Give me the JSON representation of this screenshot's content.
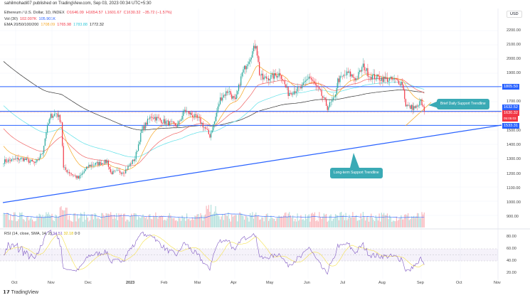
{
  "header": {
    "published": "sahilmohadi07 published on TradingView.com, Sep 03, 2023 00:34 UTC+5:30"
  },
  "legend": {
    "symbol": "Ethereum / U.S. Dollar, 1D, INDEX",
    "open": "O1646.09",
    "high": "H1654.57",
    "low": "L1601.67",
    "close": "C1630.32",
    "change": "−35.72 (−1.57%)",
    "vol_label": "Vol (30)",
    "vol_value": "102.007K",
    "vol_ma": "105.901K",
    "ema_label": "EMA 20/50/100/200",
    "ema20": "1708.09",
    "ema50": "1765.98",
    "ema100": "1783.88",
    "ema200": "1772.32"
  },
  "axis": {
    "currency": "USD",
    "price_ticks": [
      "2200.00",
      "2100.00",
      "2000.00",
      "1900.00",
      "1700.00",
      "1500.00",
      "1400.00",
      "1300.00",
      "1200.00",
      "1100.00",
      "1000.00",
      "900.00"
    ],
    "rsi_ticks": [
      "80.00",
      "60.00",
      "40.00",
      "20.00"
    ],
    "time_ticks": [
      "Oct",
      "Nov",
      "Dec",
      "2023",
      "Feb",
      "Mar",
      "Apr",
      "May",
      "Jun",
      "Jul",
      "Aug",
      "Sep",
      "Oct",
      "Nov"
    ]
  },
  "price_tags": {
    "resistance": "1805.50",
    "support_high": "1632.52",
    "last": "1630.32",
    "countdown": "05:05:03",
    "support_low": "1533.31"
  },
  "annotations": {
    "brief": "Brief Daily Support Trendline",
    "long": "Long-term Support Trendline"
  },
  "rsi": {
    "label": "RSI (14, close, SMA, 14, 2)",
    "value": "34.51",
    "sma": "32.18",
    "a": "0",
    "b": "0"
  },
  "footer": {
    "brand": "TradingView"
  },
  "colors": {
    "up": "#26a69a",
    "down": "#f23645",
    "level": "#2962ff",
    "ema20": "#f5a623",
    "ema50": "#f06464",
    "ema100": "#5ee0e8",
    "ema200": "#333333",
    "rsi": "#7e57c2",
    "rsi_ma": "#f5e14a"
  },
  "chart_data": {
    "type": "candlestick",
    "title": "Ethereum / U.S. Dollar, 1D",
    "ylim": [
      850,
      2300
    ],
    "levels": [
      1805.5,
      1632.52,
      1533.31
    ],
    "price_keypoints": [
      [
        0,
        1280
      ],
      [
        16,
        1300
      ],
      [
        28,
        1265
      ],
      [
        34,
        1350
      ],
      [
        37,
        1490
      ],
      [
        41,
        1600
      ],
      [
        46,
        1620
      ],
      [
        50,
        1560
      ],
      [
        52,
        1230
      ],
      [
        65,
        1160
      ],
      [
        74,
        1250
      ],
      [
        90,
        1280
      ],
      [
        93,
        1200
      ],
      [
        105,
        1210
      ],
      [
        114,
        1300
      ],
      [
        120,
        1500
      ],
      [
        128,
        1600
      ],
      [
        139,
        1560
      ],
      [
        151,
        1530
      ],
      [
        157,
        1640
      ],
      [
        170,
        1570
      ],
      [
        179,
        1460
      ],
      [
        183,
        1560
      ],
      [
        188,
        1720
      ],
      [
        195,
        1780
      ],
      [
        201,
        1700
      ],
      [
        207,
        1900
      ],
      [
        216,
        2050
      ],
      [
        219,
        2110
      ],
      [
        222,
        1900
      ],
      [
        225,
        1860
      ],
      [
        235,
        1880
      ],
      [
        240,
        1900
      ],
      [
        247,
        1760
      ],
      [
        259,
        1800
      ],
      [
        265,
        1880
      ],
      [
        275,
        1760
      ],
      [
        281,
        1660
      ],
      [
        287,
        1720
      ],
      [
        290,
        1850
      ],
      [
        299,
        1900
      ],
      [
        306,
        1860
      ],
      [
        312,
        1950
      ],
      [
        318,
        1880
      ],
      [
        330,
        1860
      ],
      [
        340,
        1850
      ],
      [
        346,
        1830
      ],
      [
        349,
        1680
      ],
      [
        352,
        1660
      ],
      [
        360,
        1660
      ],
      [
        361,
        1720
      ],
      [
        365,
        1630
      ]
    ]
  }
}
